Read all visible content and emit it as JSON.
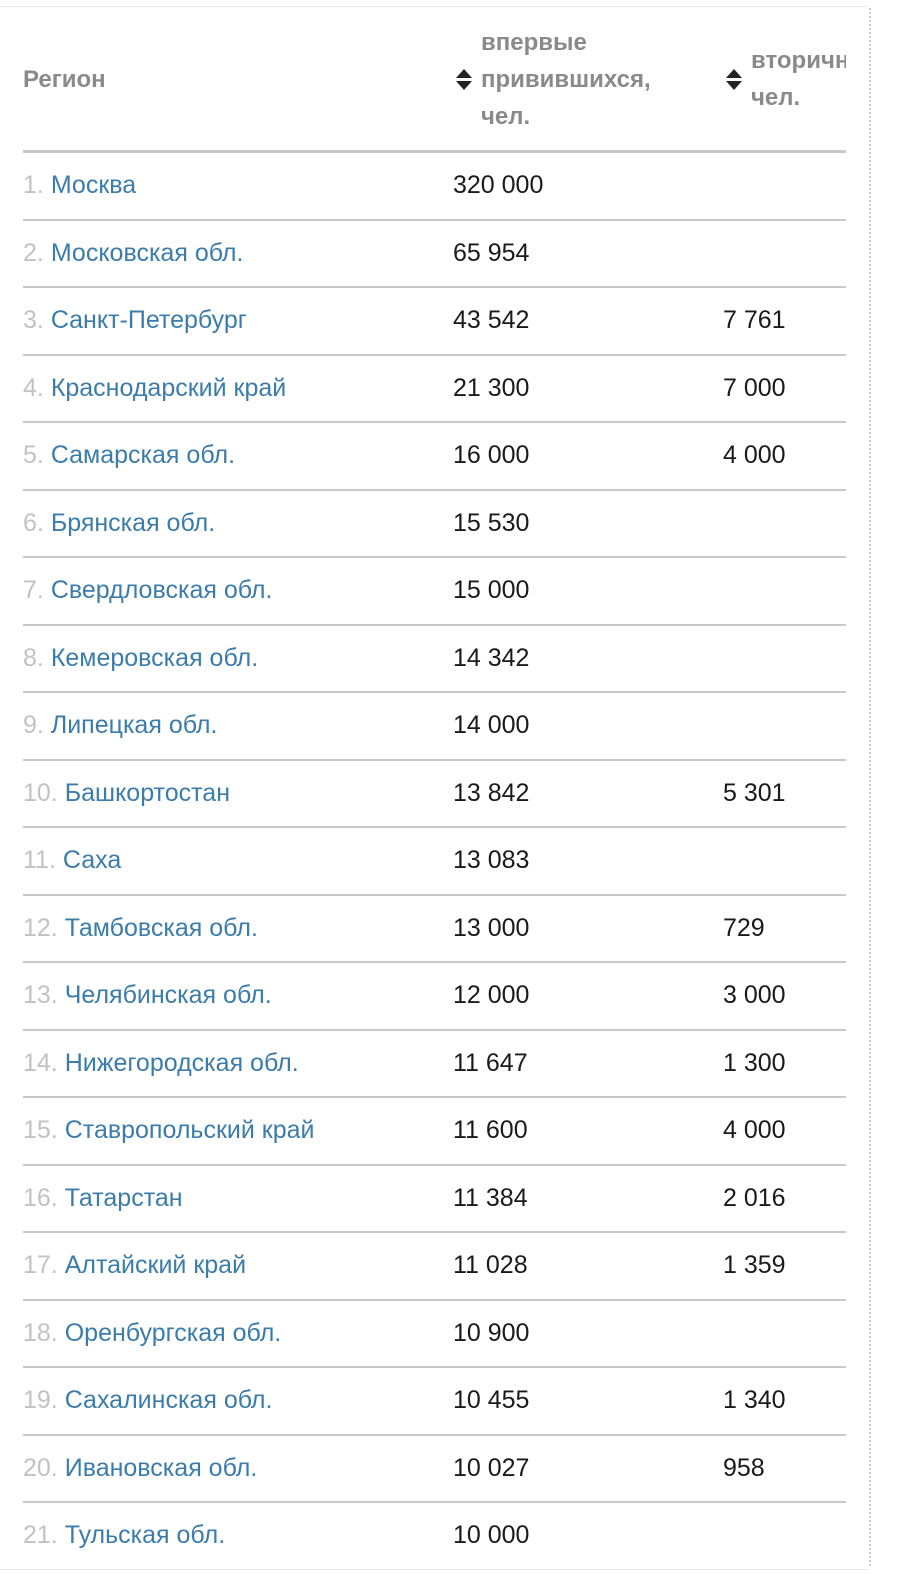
{
  "table": {
    "headers": {
      "region": "Регион",
      "first_line1": "впервые",
      "first_line2": "привившихся,",
      "first_line3": "чел.",
      "second_line1": "вторично",
      "second_line2": "чел."
    },
    "rows": [
      {
        "num": "1.",
        "region": "Москва",
        "first": "320 000",
        "second": ""
      },
      {
        "num": "2.",
        "region": "Московская обл.",
        "first": "65 954",
        "second": ""
      },
      {
        "num": "3.",
        "region": "Санкт-Петербург",
        "first": "43 542",
        "second": "7 761"
      },
      {
        "num": "4.",
        "region": "Краснодарский край",
        "first": "21 300",
        "second": "7 000"
      },
      {
        "num": "5.",
        "region": "Самарская обл.",
        "first": "16 000",
        "second": "4 000"
      },
      {
        "num": "6.",
        "region": "Брянская обл.",
        "first": "15 530",
        "second": ""
      },
      {
        "num": "7.",
        "region": "Свердловская обл.",
        "first": "15 000",
        "second": ""
      },
      {
        "num": "8.",
        "region": "Кемеровская обл.",
        "first": "14 342",
        "second": ""
      },
      {
        "num": "9.",
        "region": "Липецкая обл.",
        "first": "14 000",
        "second": ""
      },
      {
        "num": "10.",
        "region": "Башкортостан",
        "first": "13 842",
        "second": "5 301"
      },
      {
        "num": "11.",
        "region": "Саха",
        "first": "13 083",
        "second": ""
      },
      {
        "num": "12.",
        "region": "Тамбовская обл.",
        "first": "13 000",
        "second": "729"
      },
      {
        "num": "13.",
        "region": "Челябинская обл.",
        "first": "12 000",
        "second": "3 000"
      },
      {
        "num": "14.",
        "region": "Нижегородская обл.",
        "first": "11 647",
        "second": "1 300"
      },
      {
        "num": "15.",
        "region": "Ставропольский край",
        "first": "11 600",
        "second": "4 000"
      },
      {
        "num": "16.",
        "region": "Татарстан",
        "first": "11 384",
        "second": "2 016"
      },
      {
        "num": "17.",
        "region": "Алтайский край",
        "first": "11 028",
        "second": "1 359"
      },
      {
        "num": "18.",
        "region": "Оренбургская обл.",
        "first": "10 900",
        "second": ""
      },
      {
        "num": "19.",
        "region": "Сахалинская обл.",
        "first": "10 455",
        "second": "1 340"
      },
      {
        "num": "20.",
        "region": "Ивановская обл.",
        "first": "10 027",
        "second": "958"
      },
      {
        "num": "21.",
        "region": "Тульская обл.",
        "first": "10 000",
        "second": ""
      }
    ]
  },
  "icons": {
    "sort": "sort-up-down-icon"
  },
  "colors": {
    "link": "#3b7cab",
    "index": "#c2c2c2",
    "header": "#8a8a8a",
    "divider": "#c9c9c9"
  }
}
